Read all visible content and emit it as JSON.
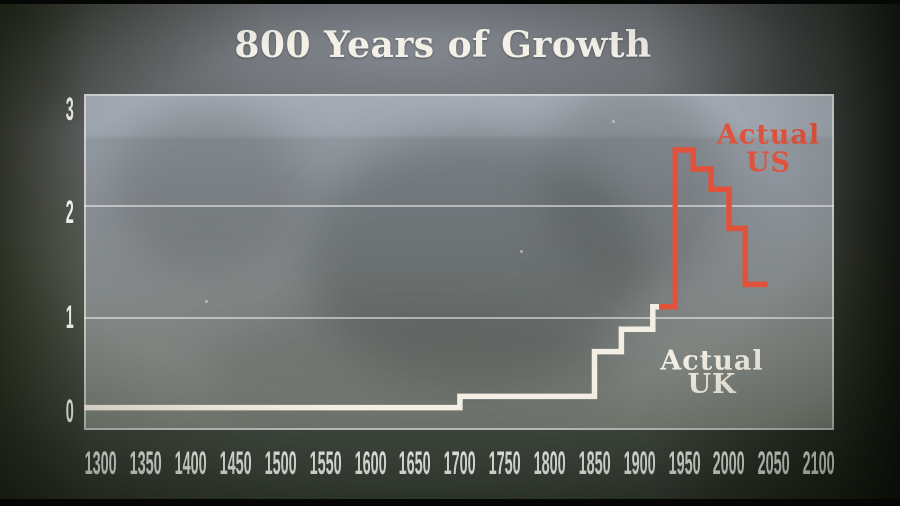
{
  "title": "800 Years of Growth",
  "colors": {
    "us_line": "#e1523c",
    "uk_line": "#f3efe4",
    "axis_text": "#edefe9",
    "title_text": "#f3f0e8",
    "gridline": "#f0f2ee"
  },
  "chart_data": {
    "type": "line",
    "line_style": "step",
    "title": "800 Years of Growth",
    "xlabel": "",
    "ylabel": "",
    "grid": "horizontal gridlines at y=1 and y=2 plus full plot box border",
    "legend_position": "inline labels next to each line",
    "x_axis": {
      "ticks": [
        1300,
        1350,
        1400,
        1450,
        1500,
        1550,
        1600,
        1650,
        1700,
        1750,
        1800,
        1850,
        1900,
        1950,
        2000,
        2050,
        2100
      ],
      "range": [
        1281,
        2117
      ]
    },
    "y_axis": {
      "ticks": [
        0,
        1,
        2,
        3
      ],
      "range": [
        0,
        3
      ]
    },
    "series": [
      {
        "name": "Actual UK",
        "color": "#f3efe4",
        "points": [
          [
            1281,
            0.2
          ],
          [
            1700,
            0.2
          ],
          [
            1700,
            0.3
          ],
          [
            1850,
            0.3
          ],
          [
            1850,
            0.7
          ],
          [
            1880,
            0.7
          ],
          [
            1880,
            0.9
          ],
          [
            1915,
            0.9
          ],
          [
            1915,
            1.1
          ],
          [
            1922,
            1.1
          ]
        ]
      },
      {
        "name": "Actual US",
        "color": "#e1523c",
        "points": [
          [
            1922,
            1.1
          ],
          [
            1940,
            1.1
          ],
          [
            1940,
            2.5
          ],
          [
            1960,
            2.5
          ],
          [
            1960,
            2.33
          ],
          [
            1980,
            2.33
          ],
          [
            1980,
            2.15
          ],
          [
            2000,
            2.15
          ],
          [
            2000,
            1.8
          ],
          [
            2018,
            1.8
          ],
          [
            2018,
            1.3
          ],
          [
            2043,
            1.3
          ]
        ]
      }
    ],
    "annotations": [
      {
        "lines": [
          "Actual",
          "US"
        ],
        "anchor_year": 2044,
        "anchor_values": [
          2.64,
          2.39
        ],
        "color": "#e1523c"
      },
      {
        "lines": [
          "Actual",
          "UK"
        ],
        "anchor_year": 1981,
        "anchor_values": [
          0.62,
          0.41
        ],
        "color": "#f3efe4"
      }
    ]
  }
}
